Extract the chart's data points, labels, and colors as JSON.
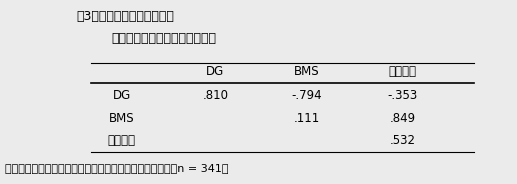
{
  "title_line1": "表3　交雑種データにおける",
  "title_line2": "主要な形質の遣伝率、遣伝相関",
  "col_headers": [
    "DG",
    "BMS",
    "枝肉単価"
  ],
  "row_headers": [
    "DG",
    "BMS",
    "枝肉単価"
  ],
  "table_data": [
    [
      ".810",
      "-.794",
      "-.353"
    ],
    [
      "",
      ".111",
      ".849"
    ],
    [
      "",
      "",
      ".532"
    ]
  ],
  "footnote": "遣伝率は対角線上の値、遣伝相関は対角線右上の値　　（n = 341）",
  "bg_color": "#ebebeb",
  "text_color": "#000000",
  "font_size": 8.5,
  "title_fontsize": 9.0
}
